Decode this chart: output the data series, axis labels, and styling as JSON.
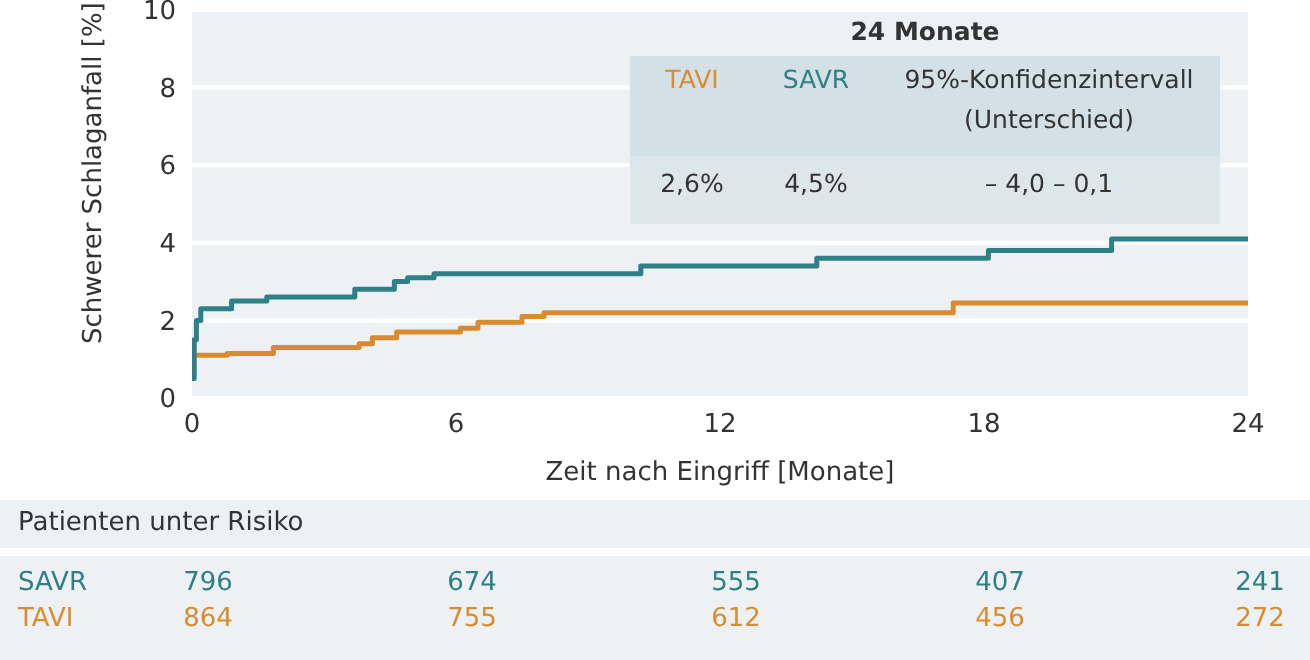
{
  "chart_data": {
    "type": "step",
    "xlabel": "Zeit nach Eingriff [Monate]",
    "ylabel": "Schwerer Schlaganfall [%]",
    "xlim": [
      0,
      24
    ],
    "xticks": [
      0,
      6,
      12,
      18,
      24
    ],
    "ylim": [
      0,
      10
    ],
    "yticks": [
      0,
      2,
      4,
      6,
      8,
      10
    ],
    "grid": "y",
    "legend": "top right",
    "series": [
      {
        "name": "TAVI",
        "color": "#d98c2f",
        "x": [
          0,
          0.8,
          1.85,
          3.8,
          4.1,
          4.65,
          6.1,
          6.5,
          7.5,
          8.0,
          17.3,
          24
        ],
        "values": [
          1.1,
          1.15,
          1.3,
          1.4,
          1.55,
          1.7,
          1.8,
          1.95,
          2.1,
          2.2,
          2.45,
          2.45
        ]
      },
      {
        "name": "SAVR",
        "color": "#2e7f86",
        "x": [
          0,
          0.05,
          0.1,
          0.2,
          0.9,
          1.7,
          3.7,
          4.6,
          4.9,
          5.5,
          10.2,
          14.2,
          18.1,
          20.9,
          24
        ],
        "values": [
          0.5,
          1.5,
          2.0,
          2.3,
          2.5,
          2.6,
          2.8,
          3.0,
          3.1,
          3.2,
          3.4,
          3.6,
          3.8,
          4.1,
          4.1
        ]
      }
    ],
    "annotations": [
      "24 Monate",
      "95%-Konfidenzintervall (Unterschied)",
      "2,6%",
      "4,5%",
      "– 4,0 – 0,1",
      "Patienten unter Risiko",
      "864",
      "755",
      "612",
      "456",
      "272",
      "796",
      "674",
      "555",
      "407",
      "241"
    ]
  }
}
